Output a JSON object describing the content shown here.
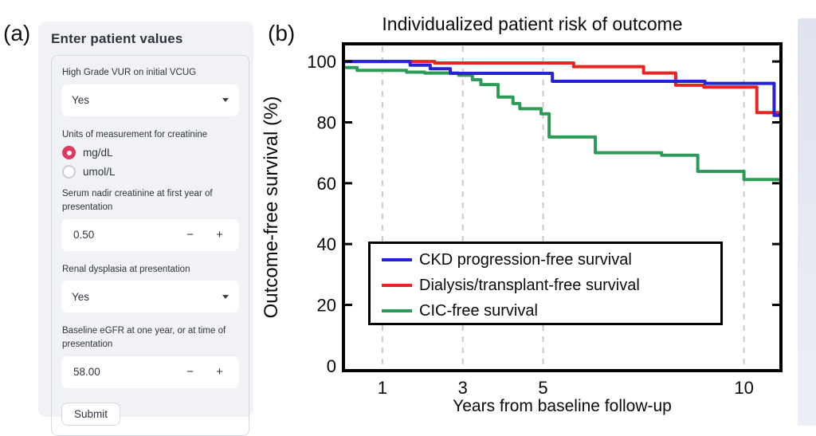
{
  "panel_labels": {
    "a": "(a)",
    "b": "(b)"
  },
  "form": {
    "accent_color": "#dd3a5f",
    "heading": "Enter patient values",
    "vur": {
      "label": "High Grade VUR on initial VCUG",
      "value": "Yes"
    },
    "units": {
      "label": "Units of measurement for creatinine",
      "options": [
        {
          "label": "mg/dL",
          "selected": true
        },
        {
          "label": "umol/L",
          "selected": false
        }
      ]
    },
    "nadir_creatinine": {
      "label": "Serum nadir creatinine at first year of presentation",
      "value": "0.50"
    },
    "renal_dysplasia": {
      "label": "Renal dysplasia at presentation",
      "value": "Yes"
    },
    "baseline_egfr": {
      "label": "Baseline eGFR at one year, or at time of presentation",
      "value": "58.00"
    },
    "stepper": {
      "minus": "−",
      "plus": "+"
    },
    "submit_label": "Submit"
  },
  "chart_data": {
    "type": "line",
    "step": "post",
    "title": "Individualized patient risk of outcome",
    "xlabel": "Years from baseline follow-up",
    "ylabel": "Outcome-free survival (%)",
    "xlim": [
      0.03,
      10.92
    ],
    "ylim": [
      -1.6,
      105.8
    ],
    "x_ticks": [
      1,
      3,
      5,
      10
    ],
    "y_ticks": [
      0,
      20,
      40,
      60,
      80,
      100
    ],
    "grid": {
      "x_dashed_at": [
        1,
        3,
        5,
        10
      ],
      "color": "#c9c9c9"
    },
    "legend_position": "lower-left-inside",
    "series": [
      {
        "name": "CKD progression-free survival",
        "color": "#2424d6",
        "points": [
          [
            0,
            100
          ],
          [
            1.69,
            98.8
          ],
          [
            2.19,
            97.6
          ],
          [
            2.69,
            96.1
          ],
          [
            5.23,
            93.5
          ],
          [
            9.03,
            92.8
          ],
          [
            10.75,
            82.3
          ],
          [
            10.92,
            82.3
          ]
        ]
      },
      {
        "name": "Dialysis/transplant-free survival",
        "color": "#e52521",
        "points": [
          [
            0,
            100
          ],
          [
            2.3,
            99.5
          ],
          [
            5.76,
            98.3
          ],
          [
            7.5,
            96.2
          ],
          [
            8.3,
            92.2
          ],
          [
            9.0,
            91.6
          ],
          [
            10.32,
            83.2
          ],
          [
            10.92,
            83.2
          ]
        ]
      },
      {
        "name": "CIC-free survival",
        "color": "#2b9b57",
        "points": [
          [
            0,
            98
          ],
          [
            0.37,
            97.1
          ],
          [
            1.6,
            96.5
          ],
          [
            2.05,
            96.2
          ],
          [
            2.9,
            95.5
          ],
          [
            3.24,
            94
          ],
          [
            3.45,
            92.4
          ],
          [
            3.88,
            88.3
          ],
          [
            4.25,
            86.2
          ],
          [
            4.42,
            84.5
          ],
          [
            4.95,
            82.8
          ],
          [
            5.15,
            75.2
          ],
          [
            6.3,
            70
          ],
          [
            7.95,
            69.2
          ],
          [
            8.85,
            63.9
          ],
          [
            10.0,
            61.2
          ],
          [
            10.92,
            61.2
          ]
        ]
      }
    ]
  }
}
